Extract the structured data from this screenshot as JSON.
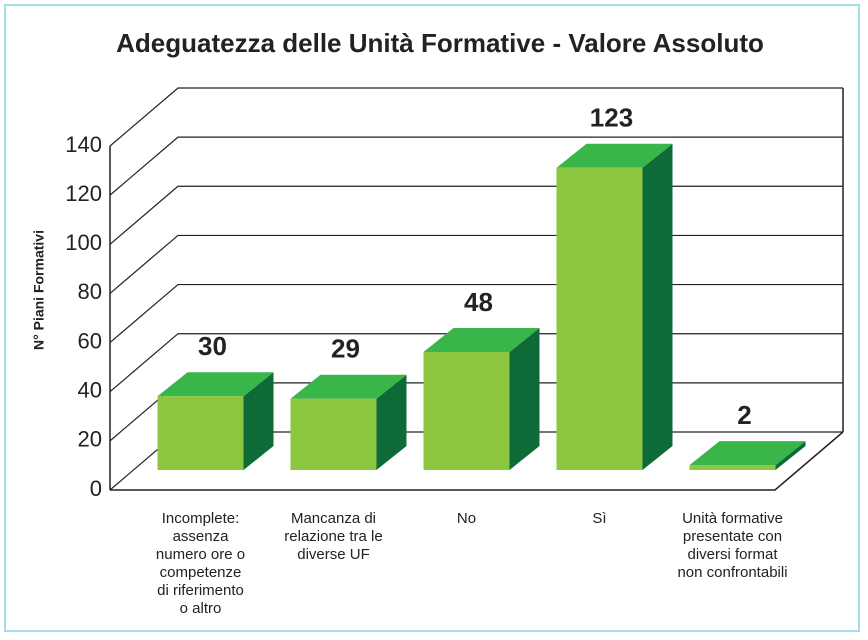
{
  "chart_data": {
    "type": "bar3d",
    "title": "Adeguatezza delle Unità Formative - Valore Assoluto",
    "y_label": "N° Piani Formativi",
    "categories": [
      "Incomplete:\nassenza\nnumero ore o\ncompetenze\ndi riferimento\no altro",
      "Mancanza di\nrelazione tra le\ndiverse UF",
      "No",
      "Sì",
      "Unità formative\npresentate con\ndiversi format\nnon confrontabili"
    ],
    "values": [
      30,
      29,
      48,
      123,
      2
    ],
    "colors": {
      "front": "#8dc63f",
      "top": "#39b54a",
      "side": "#0e6b38"
    },
    "ylim": [
      0,
      140
    ],
    "yticks": [
      0,
      20,
      40,
      60,
      80,
      100,
      120,
      140
    ],
    "grid": true
  }
}
